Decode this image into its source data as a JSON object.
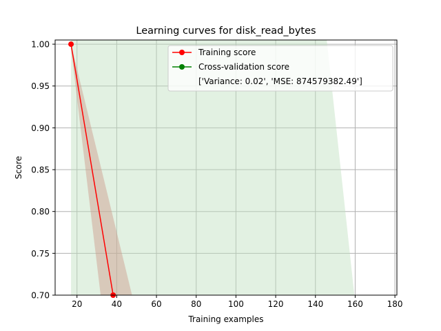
{
  "chart_data": {
    "type": "line",
    "title": "Learning curves for disk_read_bytes",
    "xlabel": "Training examples",
    "ylabel": "Score",
    "xlim": [
      9,
      181
    ],
    "ylim": [
      0.7,
      1.005
    ],
    "xticks": [
      20,
      40,
      60,
      80,
      100,
      120,
      140,
      160,
      180
    ],
    "xtick_labels": [
      "20",
      "40",
      "60",
      "80",
      "100",
      "120",
      "140",
      "160",
      "180"
    ],
    "yticks": [
      0.7,
      0.75,
      0.8,
      0.85,
      0.9,
      0.95,
      1.0
    ],
    "ytick_labels": [
      "0.70",
      "0.75",
      "0.80",
      "0.85",
      "0.90",
      "0.95",
      "1.00"
    ],
    "grid": true,
    "legend_position": "top-right",
    "series": [
      {
        "name": "Training score",
        "color": "#ff0000",
        "marker": "circle",
        "x": [
          17,
          38.2
        ],
        "y": [
          1.0,
          0.7
        ],
        "band": {
          "color": "#cc9a8a",
          "upper": [
            [
              17,
              1.0
            ],
            [
              47.7,
              0.7
            ]
          ],
          "lower": [
            [
              17,
              0.995
            ],
            [
              31.9,
              0.7
            ]
          ]
        }
      },
      {
        "name": "Cross-validation score",
        "color": "#008000",
        "marker": "circle",
        "x": [],
        "y": [],
        "band": {
          "color": "#bfe0bf",
          "polygon": [
            [
              17,
              1.005
            ],
            [
              145.7,
              1.005
            ],
            [
              159.6,
              0.7
            ],
            [
              17,
              0.7
            ]
          ]
        }
      }
    ],
    "legend_note": "['Variance: 0.02', 'MSE: 874579382.49']"
  }
}
